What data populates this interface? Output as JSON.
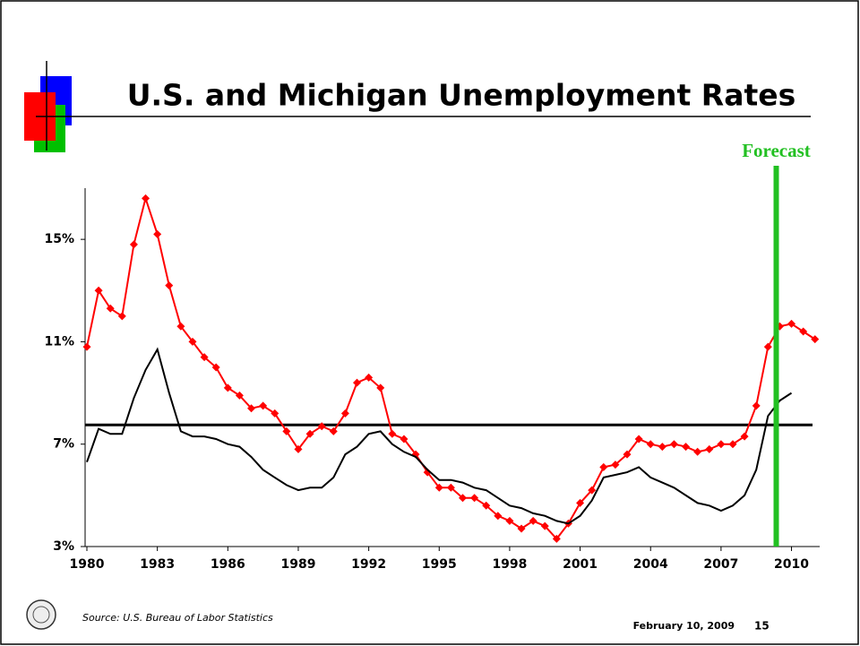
{
  "title": "U.S. and Michigan Unemployment Rates",
  "chart_data": {
    "type": "line",
    "x": [
      1980,
      1980.5,
      1981,
      1981.5,
      1982,
      1982.5,
      1983,
      1983.5,
      1984,
      1984.5,
      1985,
      1985.5,
      1986,
      1986.5,
      1987,
      1987.5,
      1988,
      1988.5,
      1989,
      1989.5,
      1990,
      1990.5,
      1991,
      1991.5,
      1992,
      1992.5,
      1993,
      1993.5,
      1994,
      1994.5,
      1995,
      1995.5,
      1996,
      1996.5,
      1997,
      1997.5,
      1998,
      1998.5,
      1999,
      1999.5,
      2000,
      2000.5,
      2001,
      2001.5,
      2002,
      2002.5,
      2003,
      2003.5,
      2004,
      2004.5,
      2005,
      2005.5,
      2006,
      2006.5,
      2007,
      2007.5,
      2008,
      2008.5,
      2009,
      2009.5,
      2010,
      2010.5,
      2011
    ],
    "series": [
      {
        "color": "#ff0000",
        "marker": "diamond",
        "values": [
          10.8,
          13.0,
          12.3,
          12.0,
          14.8,
          16.6,
          15.2,
          13.2,
          11.6,
          11.0,
          10.4,
          10.0,
          9.2,
          8.9,
          8.4,
          8.5,
          8.2,
          7.5,
          6.8,
          7.4,
          7.7,
          7.5,
          8.2,
          9.4,
          9.6,
          9.2,
          7.4,
          7.2,
          6.6,
          5.9,
          5.3,
          5.3,
          4.9,
          4.9,
          4.6,
          4.2,
          4.0,
          3.7,
          4.0,
          3.8,
          3.3,
          3.9,
          4.7,
          5.2,
          6.1,
          6.2,
          6.6,
          7.2,
          7.0,
          6.9,
          7.0,
          6.9,
          6.7,
          6.8,
          7.0,
          7.0,
          7.3,
          8.5,
          10.8,
          11.6,
          11.7,
          11.4,
          11.1
        ]
      },
      {
        "color": "#000000",
        "values": [
          6.3,
          7.6,
          7.4,
          7.4,
          8.8,
          9.9,
          10.7,
          9.0,
          7.5,
          7.3,
          7.3,
          7.2,
          7.0,
          6.9,
          6.5,
          6.0,
          5.7,
          5.4,
          5.2,
          5.3,
          5.3,
          5.7,
          6.6,
          6.9,
          7.4,
          7.5,
          7.0,
          6.7,
          6.5,
          6.0,
          5.6,
          5.6,
          5.5,
          5.3,
          5.2,
          4.9,
          4.6,
          4.5,
          4.3,
          4.2,
          4.0,
          3.9,
          4.2,
          4.8,
          5.7,
          5.8,
          5.9,
          6.1,
          5.7,
          5.5,
          5.3,
          5.0,
          4.7,
          4.6,
          4.4,
          4.6,
          5.0,
          6.0,
          8.1,
          8.7,
          9.0,
          null,
          null
        ]
      }
    ],
    "xlim": [
      1980,
      2011.2
    ],
    "xticks": [
      1980,
      1983,
      1986,
      1989,
      1992,
      1995,
      1998,
      2001,
      2004,
      2007,
      2010
    ],
    "ylim": [
      3,
      17
    ],
    "yticks": [
      {
        "value": 3,
        "label": "3%"
      },
      {
        "value": 7,
        "label": "7%"
      },
      {
        "value": 11,
        "label": "11%"
      },
      {
        "value": 15,
        "label": "15%"
      }
    ],
    "reference_lines": [
      {
        "y": 7.75,
        "color": "#000000"
      }
    ],
    "annotations": [
      {
        "text": "Forecast",
        "x": 2009.35,
        "color": "#22c022"
      }
    ]
  },
  "footer": {
    "source": "Source: U.S. Bureau of Labor Statistics",
    "date": "February 10, 2009",
    "page": "15"
  }
}
